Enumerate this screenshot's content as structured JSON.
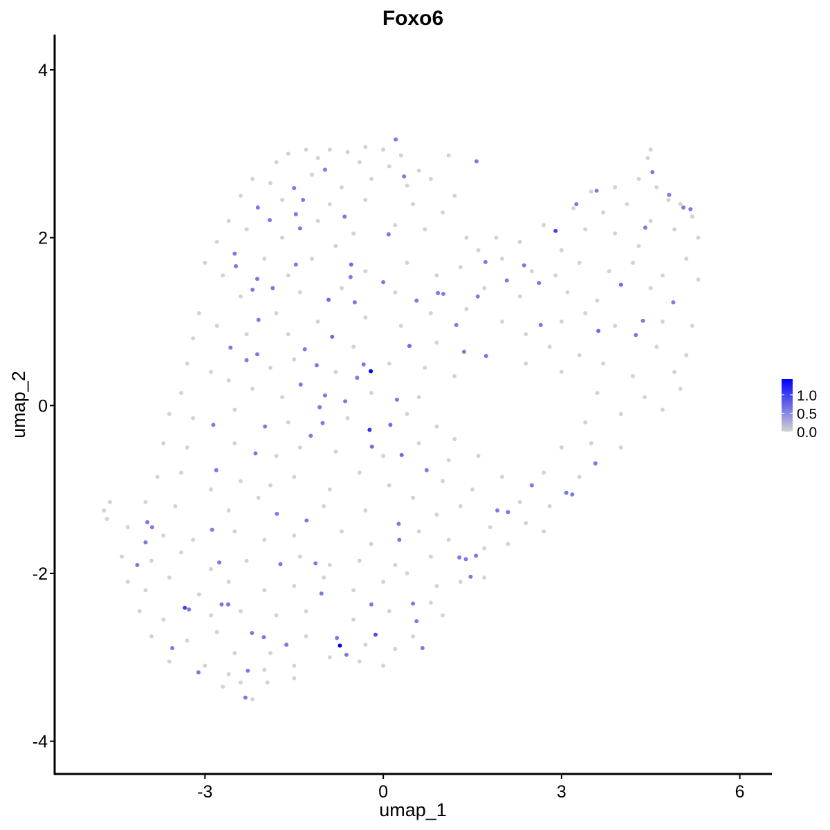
{
  "chart_data": {
    "type": "scatter",
    "title": "Foxo6",
    "xlabel": "umap_1",
    "ylabel": "umap_2",
    "xlim": [
      -5.53,
      6.54
    ],
    "ylim": [
      -4.39,
      4.42
    ],
    "xticks": [
      -3,
      0,
      3,
      6
    ],
    "yticks": [
      -4,
      -2,
      0,
      2,
      4
    ],
    "grid": false,
    "legend": {
      "placement": "right",
      "ticks": [
        "1.0",
        "0.5",
        "0.0"
      ],
      "range": [
        0,
        1.43
      ]
    },
    "colors": {
      "low": "#D3D3D3",
      "high": "#0000FF"
    },
    "expressed_cells": [
      [
        0.21,
        3.17,
        0.6
      ],
      [
        1.57,
        2.91,
        0.6
      ],
      [
        -0.98,
        2.81,
        0.6
      ],
      [
        0.35,
        2.73,
        0.6
      ],
      [
        -1.5,
        2.59,
        0.6
      ],
      [
        -1.35,
        2.45,
        0.6
      ],
      [
        -2.11,
        2.36,
        0.6
      ],
      [
        -1.91,
        2.21,
        0.6
      ],
      [
        -1.47,
        2.28,
        0.6
      ],
      [
        -0.65,
        2.25,
        0.6
      ],
      [
        -1.4,
        2.11,
        0.6
      ],
      [
        0.09,
        2.04,
        0.6
      ],
      [
        -2.5,
        1.81,
        0.6
      ],
      [
        -0.54,
        1.68,
        0.7
      ],
      [
        -1.47,
        1.68,
        0.6
      ],
      [
        -2.48,
        1.66,
        0.6
      ],
      [
        -2.12,
        1.51,
        0.6
      ],
      [
        -1.86,
        1.4,
        0.6
      ],
      [
        0,
        1.47,
        0.6
      ],
      [
        -2.2,
        1.38,
        0.6
      ],
      [
        -0.55,
        1.53,
        0.6
      ],
      [
        -0.92,
        1.26,
        0.7
      ],
      [
        -0.48,
        1.23,
        0.6
      ],
      [
        -2.1,
        1.02,
        0.6
      ],
      [
        -0.86,
        0.82,
        0.7
      ],
      [
        -1.32,
        0.67,
        0.6
      ],
      [
        -2.3,
        0.54,
        0.6
      ],
      [
        -2.57,
        0.69,
        0.6
      ],
      [
        -2.12,
        0.61,
        0.6
      ],
      [
        0.44,
        0.71,
        0.7
      ],
      [
        -0.33,
        0.49,
        0.6
      ],
      [
        -0.21,
        0.41,
        1.43
      ],
      [
        -1.12,
        0.48,
        0.6
      ],
      [
        -1.39,
        0.25,
        0.6
      ],
      [
        -0.44,
        0.33,
        0.6
      ],
      [
        -0.64,
        0.05,
        0.6
      ],
      [
        -0.98,
        0.12,
        0.6
      ],
      [
        0.23,
        0.07,
        0.6
      ],
      [
        -1.07,
        -0.02,
        0.6
      ],
      [
        0.12,
        -0.23,
        0.7
      ],
      [
        -2.86,
        -0.23,
        0.6
      ],
      [
        -1.02,
        -0.21,
        0.6
      ],
      [
        -1.99,
        -0.25,
        0.6
      ],
      [
        -0.23,
        -0.29,
        1.1
      ],
      [
        -0.19,
        -0.49,
        0.7
      ],
      [
        -1.22,
        -0.36,
        0.6
      ],
      [
        -2.15,
        -0.57,
        0.6
      ],
      [
        0.31,
        -0.59,
        0.7
      ],
      [
        -2.81,
        -0.77,
        0.6
      ],
      [
        0.73,
        -0.77,
        0.6
      ],
      [
        -2.88,
        -1.48,
        0.6
      ],
      [
        -1.79,
        -1.29,
        0.6
      ],
      [
        -1.29,
        -1.37,
        0.6
      ],
      [
        0.26,
        -1.41,
        0.6
      ],
      [
        0.27,
        -1.6,
        0.6
      ],
      [
        -3.97,
        -1.39,
        0.6
      ],
      [
        -3.89,
        -1.45,
        0.6
      ],
      [
        -4.0,
        -1.63,
        0.6
      ],
      [
        -4.14,
        -1.9,
        0.6
      ],
      [
        -3.27,
        -2.43,
        0.6
      ],
      [
        -3.34,
        -2.41,
        1.0
      ],
      [
        -2.72,
        -2.37,
        0.6
      ],
      [
        -2.21,
        -2.71,
        0.6
      ],
      [
        -2.01,
        -2.76,
        0.6
      ],
      [
        -1.63,
        -2.85,
        0.6
      ],
      [
        -2.76,
        -1.87,
        0.6
      ],
      [
        -1.73,
        -1.89,
        0.6
      ],
      [
        -1.14,
        -1.88,
        0.6
      ],
      [
        -1.04,
        -2.24,
        0.6
      ],
      [
        -0.2,
        -2.37,
        0.6
      ],
      [
        0.5,
        -2.36,
        0.6
      ],
      [
        0.56,
        -2.57,
        0.6
      ],
      [
        -0.78,
        -2.77,
        0.6
      ],
      [
        -0.73,
        -2.86,
        1.43
      ],
      [
        -0.62,
        -2.97,
        0.6
      ],
      [
        -0.13,
        -2.73,
        0.9
      ],
      [
        0.66,
        -2.89,
        0.6
      ],
      [
        -3.55,
        -2.89,
        0.6
      ],
      [
        -3.11,
        -3.18,
        0.6
      ],
      [
        -2.28,
        -3.16,
        0.6
      ],
      [
        -2.32,
        -3.48,
        0.6
      ],
      [
        -2.61,
        -2.37,
        0.6
      ],
      [
        1.28,
        -1.81,
        0.6
      ],
      [
        1.56,
        -1.79,
        0.6
      ],
      [
        1.47,
        -2.04,
        0.6
      ],
      [
        1.39,
        -1.83,
        0.6
      ],
      [
        1.92,
        -1.25,
        0.6
      ],
      [
        2.5,
        -0.95,
        0.6
      ],
      [
        3.08,
        -1.04,
        0.6
      ],
      [
        3.18,
        -1.06,
        0.6
      ],
      [
        3.57,
        -0.69,
        0.6
      ],
      [
        3.62,
        0.89,
        0.7
      ],
      [
        4.25,
        0.84,
        0.6
      ],
      [
        4.37,
        1.01,
        0.6
      ],
      [
        4.0,
        1.44,
        0.7
      ],
      [
        4.88,
        1.23,
        0.6
      ],
      [
        4.41,
        2.12,
        0.6
      ],
      [
        5.05,
        2.36,
        0.6
      ],
      [
        5.17,
        2.34,
        0.6
      ],
      [
        4.81,
        2.51,
        0.6
      ],
      [
        4.53,
        2.78,
        0.6
      ],
      [
        3.59,
        2.56,
        0.6
      ],
      [
        3.25,
        2.4,
        0.6
      ],
      [
        2.9,
        2.08,
        1.0
      ],
      [
        2.37,
        1.67,
        0.6
      ],
      [
        2.62,
        1.46,
        0.6
      ],
      [
        2.08,
        1.49,
        0.6
      ],
      [
        1.72,
        1.71,
        0.6
      ],
      [
        1.59,
        1.3,
        0.6
      ],
      [
        1.73,
        0.59,
        0.6
      ],
      [
        1.36,
        0.64,
        0.6
      ],
      [
        1.23,
        0.96,
        0.6
      ],
      [
        1.01,
        1.33,
        0.6
      ],
      [
        0.92,
        1.34,
        0.6
      ],
      [
        0.56,
        1.25,
        0.6
      ],
      [
        2.65,
        0.96,
        0.6
      ],
      [
        2.1,
        -1.27,
        0.6
      ]
    ],
    "unexpressed_cells": [
      [
        -1.6,
        3.0
      ],
      [
        -1.3,
        3.05
      ],
      [
        -0.9,
        3.05
      ],
      [
        -0.6,
        3.02
      ],
      [
        -0.3,
        3.08
      ],
      [
        0.0,
        3.05
      ],
      [
        0.3,
        2.98
      ],
      [
        -1.8,
        2.9
      ],
      [
        -1.1,
        2.95
      ],
      [
        -0.4,
        2.9
      ],
      [
        0.1,
        2.85
      ],
      [
        0.6,
        2.8
      ],
      [
        1.1,
        2.98
      ],
      [
        4.5,
        3.05
      ],
      [
        4.45,
        2.95
      ],
      [
        -2.2,
        2.7
      ],
      [
        -1.9,
        2.65
      ],
      [
        -1.2,
        2.75
      ],
      [
        -0.7,
        2.6
      ],
      [
        -0.2,
        2.7
      ],
      [
        0.4,
        2.62
      ],
      [
        0.8,
        2.7
      ],
      [
        1.2,
        2.5
      ],
      [
        3.5,
        2.55
      ],
      [
        3.9,
        2.6
      ],
      [
        4.3,
        2.7
      ],
      [
        4.6,
        2.6
      ],
      [
        4.8,
        2.45
      ],
      [
        -2.4,
        2.5
      ],
      [
        -1.7,
        2.45
      ],
      [
        -0.9,
        2.4
      ],
      [
        -0.3,
        2.45
      ],
      [
        0.5,
        2.4
      ],
      [
        1.0,
        2.3
      ],
      [
        3.2,
        2.35
      ],
      [
        3.7,
        2.3
      ],
      [
        4.1,
        2.4
      ],
      [
        5.0,
        2.4
      ],
      [
        -2.6,
        2.2
      ],
      [
        -2.3,
        2.1
      ],
      [
        -1.7,
        2.0
      ],
      [
        -1.1,
        2.2
      ],
      [
        -0.5,
        2.05
      ],
      [
        0.2,
        2.15
      ],
      [
        0.7,
        2.1
      ],
      [
        1.4,
        2.0
      ],
      [
        1.9,
        2.0
      ],
      [
        2.3,
        1.95
      ],
      [
        2.7,
        2.15
      ],
      [
        3.4,
        2.1
      ],
      [
        3.9,
        2.05
      ],
      [
        4.5,
        2.2
      ],
      [
        4.9,
        2.1
      ],
      [
        5.3,
        2.0
      ],
      [
        5.2,
        2.25
      ],
      [
        -2.8,
        1.95
      ],
      [
        -0.8,
        1.9
      ],
      [
        1.6,
        1.85
      ],
      [
        3.0,
        1.85
      ],
      [
        4.3,
        1.9
      ],
      [
        -3.0,
        1.7
      ],
      [
        -2.7,
        1.55
      ],
      [
        -2.0,
        1.75
      ],
      [
        -1.6,
        1.55
      ],
      [
        -1.2,
        1.75
      ],
      [
        -0.3,
        1.6
      ],
      [
        0.4,
        1.7
      ],
      [
        0.9,
        1.55
      ],
      [
        1.3,
        1.65
      ],
      [
        2.0,
        1.75
      ],
      [
        2.5,
        1.6
      ],
      [
        2.9,
        1.55
      ],
      [
        3.3,
        1.7
      ],
      [
        3.8,
        1.6
      ],
      [
        4.2,
        1.7
      ],
      [
        4.7,
        1.55
      ],
      [
        5.1,
        1.75
      ],
      [
        5.3,
        1.5
      ],
      [
        -2.4,
        1.3
      ],
      [
        -1.4,
        1.35
      ],
      [
        -0.7,
        1.4
      ],
      [
        0.2,
        1.35
      ],
      [
        1.7,
        1.4
      ],
      [
        2.3,
        1.3
      ],
      [
        3.1,
        1.35
      ],
      [
        3.6,
        1.25
      ],
      [
        4.5,
        1.4
      ],
      [
        -3.1,
        1.1
      ],
      [
        -2.8,
        0.95
      ],
      [
        -2.3,
        0.85
      ],
      [
        -1.8,
        1.1
      ],
      [
        -1.1,
        1.0
      ],
      [
        -0.3,
        1.05
      ],
      [
        0.3,
        0.95
      ],
      [
        0.8,
        1.1
      ],
      [
        1.4,
        1.15
      ],
      [
        2.0,
        1.0
      ],
      [
        2.4,
        0.85
      ],
      [
        3.0,
        1.0
      ],
      [
        3.4,
        1.1
      ],
      [
        3.9,
        0.95
      ],
      [
        4.7,
        1.0
      ],
      [
        5.2,
        0.95
      ],
      [
        -3.2,
        0.8
      ],
      [
        -1.6,
        0.85
      ],
      [
        -0.5,
        0.7
      ],
      [
        0.9,
        0.75
      ],
      [
        2.8,
        0.7
      ],
      [
        3.3,
        0.6
      ],
      [
        4.6,
        0.7
      ],
      [
        5.1,
        0.6
      ],
      [
        -3.3,
        0.5
      ],
      [
        -2.9,
        0.4
      ],
      [
        -2.6,
        0.3
      ],
      [
        -1.9,
        0.45
      ],
      [
        -1.5,
        0.55
      ],
      [
        -0.8,
        0.4
      ],
      [
        0.1,
        0.5
      ],
      [
        0.7,
        0.45
      ],
      [
        1.2,
        0.35
      ],
      [
        2.4,
        0.5
      ],
      [
        3.0,
        0.4
      ],
      [
        3.7,
        0.5
      ],
      [
        4.2,
        0.35
      ],
      [
        4.9,
        0.4
      ],
      [
        5.0,
        0.2
      ],
      [
        -3.4,
        0.15
      ],
      [
        -2.2,
        0.2
      ],
      [
        -1.7,
        0.1
      ],
      [
        -0.2,
        0.15
      ],
      [
        0.6,
        0.1
      ],
      [
        3.6,
        0.15
      ],
      [
        4.4,
        0.1
      ],
      [
        -3.6,
        -0.1
      ],
      [
        -3.2,
        -0.15
      ],
      [
        -2.5,
        -0.05
      ],
      [
        -1.6,
        -0.2
      ],
      [
        -0.6,
        -0.15
      ],
      [
        0.4,
        -0.1
      ],
      [
        0.9,
        -0.25
      ],
      [
        1.2,
        -0.4
      ],
      [
        3.4,
        -0.2
      ],
      [
        4.0,
        -0.1
      ],
      [
        4.7,
        -0.05
      ],
      [
        -3.7,
        -0.45
      ],
      [
        -3.3,
        -0.5
      ],
      [
        -2.5,
        -0.45
      ],
      [
        -1.8,
        -0.6
      ],
      [
        -1.4,
        -0.5
      ],
      [
        -0.8,
        -0.55
      ],
      [
        0.0,
        -0.6
      ],
      [
        0.6,
        -0.45
      ],
      [
        1.1,
        -0.65
      ],
      [
        1.6,
        -0.6
      ],
      [
        3.0,
        -0.5
      ],
      [
        3.5,
        -0.45
      ],
      [
        4.0,
        -0.5
      ],
      [
        -3.8,
        -0.85
      ],
      [
        -3.4,
        -0.8
      ],
      [
        -2.9,
        -1.0
      ],
      [
        -2.4,
        -0.9
      ],
      [
        -1.9,
        -0.95
      ],
      [
        -1.5,
        -0.85
      ],
      [
        -0.9,
        -1.0
      ],
      [
        -0.4,
        -0.8
      ],
      [
        0.1,
        -0.95
      ],
      [
        0.5,
        -1.1
      ],
      [
        1.0,
        -0.9
      ],
      [
        1.5,
        -1.0
      ],
      [
        2.0,
        -0.85
      ],
      [
        2.7,
        -0.8
      ],
      [
        3.3,
        -0.85
      ],
      [
        -4.0,
        -1.15
      ],
      [
        -3.5,
        -1.2
      ],
      [
        -2.6,
        -1.25
      ],
      [
        -2.1,
        -1.1
      ],
      [
        -1.0,
        -1.2
      ],
      [
        -0.3,
        -1.25
      ],
      [
        0.9,
        -1.3
      ],
      [
        1.3,
        -1.2
      ],
      [
        2.3,
        -1.15
      ],
      [
        2.8,
        -1.2
      ],
      [
        -4.7,
        -1.25
      ],
      [
        -4.6,
        -1.15
      ],
      [
        -4.65,
        -1.35
      ],
      [
        -4.3,
        -1.45
      ],
      [
        -3.7,
        -1.55
      ],
      [
        -3.2,
        -1.6
      ],
      [
        -2.5,
        -1.5
      ],
      [
        -2.0,
        -1.6
      ],
      [
        -1.5,
        -1.55
      ],
      [
        -0.7,
        -1.5
      ],
      [
        -0.2,
        -1.65
      ],
      [
        0.6,
        -1.5
      ],
      [
        1.1,
        -1.6
      ],
      [
        1.8,
        -1.45
      ],
      [
        2.4,
        -1.4
      ],
      [
        2.7,
        -1.5
      ],
      [
        -4.4,
        -1.8
      ],
      [
        -3.9,
        -1.85
      ],
      [
        -3.4,
        -1.75
      ],
      [
        -2.9,
        -1.95
      ],
      [
        -2.3,
        -1.85
      ],
      [
        -1.4,
        -1.8
      ],
      [
        -0.9,
        -1.9
      ],
      [
        -0.4,
        -1.85
      ],
      [
        0.2,
        -1.9
      ],
      [
        0.8,
        -1.8
      ],
      [
        1.7,
        -1.7
      ],
      [
        2.1,
        -1.65
      ],
      [
        -4.3,
        -2.1
      ],
      [
        -4.0,
        -2.2
      ],
      [
        -3.6,
        -2.05
      ],
      [
        -3.1,
        -2.25
      ],
      [
        -2.6,
        -2.1
      ],
      [
        -2.0,
        -2.2
      ],
      [
        -1.5,
        -2.15
      ],
      [
        -1.0,
        -2.05
      ],
      [
        -0.5,
        -2.2
      ],
      [
        0.0,
        -2.1
      ],
      [
        0.4,
        -2.0
      ],
      [
        0.9,
        -2.15
      ],
      [
        1.3,
        -2.1
      ],
      [
        1.7,
        -2.05
      ],
      [
        -4.1,
        -2.45
      ],
      [
        -3.7,
        -2.55
      ],
      [
        -2.9,
        -2.5
      ],
      [
        -2.4,
        -2.45
      ],
      [
        -1.8,
        -2.5
      ],
      [
        -1.3,
        -2.45
      ],
      [
        -0.5,
        -2.55
      ],
      [
        0.1,
        -2.45
      ],
      [
        0.8,
        -2.35
      ],
      [
        1.0,
        -2.5
      ],
      [
        -3.9,
        -2.75
      ],
      [
        -3.3,
        -2.8
      ],
      [
        -2.8,
        -2.7
      ],
      [
        -2.5,
        -2.95
      ],
      [
        -1.9,
        -2.95
      ],
      [
        -1.3,
        -2.75
      ],
      [
        -0.9,
        -3.0
      ],
      [
        -0.3,
        -2.85
      ],
      [
        0.2,
        -2.9
      ],
      [
        0.5,
        -2.75
      ],
      [
        -3.6,
        -3.05
      ],
      [
        -3.0,
        -3.1
      ],
      [
        -2.6,
        -3.2
      ],
      [
        -2.0,
        -3.15
      ],
      [
        -1.5,
        -3.1
      ],
      [
        -0.4,
        -3.05
      ],
      [
        0.0,
        -3.1
      ],
      [
        -2.7,
        -3.35
      ],
      [
        -2.4,
        -3.3
      ],
      [
        -2.2,
        -3.5
      ],
      [
        -1.95,
        -3.3
      ],
      [
        -1.5,
        -3.25
      ]
    ]
  }
}
